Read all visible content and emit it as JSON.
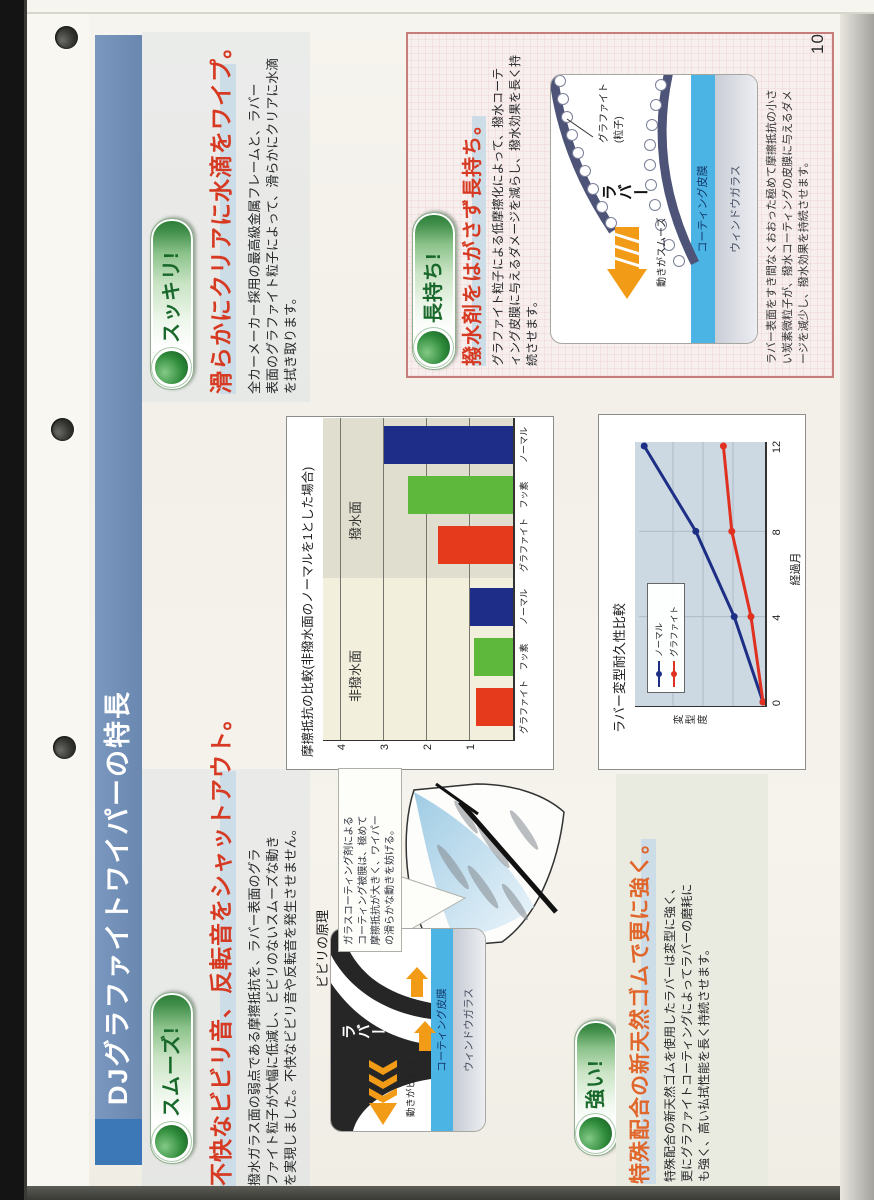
{
  "page": {
    "number": "10",
    "title": "DJグラファイトワイパーの特長"
  },
  "colors": {
    "title_bar": "#7090ba",
    "title_cap": "#3c78b7",
    "headline_red": "#d63a22",
    "headline_orange": "#e0662c",
    "pill_green": "#2b7b36",
    "coating_blue": "#4cb4e4",
    "orange_arrow": "#f29b16",
    "pink_border": "#c87d7d",
    "bar_graphite": "#e63a1c",
    "bar_fluorine": "#5eb83c",
    "bar_normal": "#1e2d87",
    "line_normal": "#1c2f85",
    "line_graphite": "#e03020"
  },
  "sections": {
    "smooth": {
      "badge": "スムーズ!",
      "headline": "不快なビビリ音、反転音をシャットアウト。",
      "body": [
        "撥水ガラス面の弱点である摩擦抵抗を、ラバー表面のグラ",
        "ファイト粒子が大幅に低減し、ビビリのないスムーズな動き",
        "を実現しました。不快なビビリ音や反転音を発生させません。"
      ],
      "diagram_title": "ビビリの原理",
      "callout": [
        "ガラスコーティング剤による",
        "コーティング被膜は、極めて",
        "摩擦抵抗が大きく、ワイパー",
        "の滑らかな動きを妨げる。"
      ],
      "diagram": {
        "rubber": "ラバー",
        "motion": "動きがビビリ",
        "coating": "コーティング皮膜",
        "glass": "ウィンドウガラス"
      }
    },
    "clear": {
      "badge": "スッキリ!",
      "headline": "滑らかにクリアに水滴をワイプ。",
      "body": [
        "全カーメーカー採用の最高級金属フレームと、ラバー",
        "表面のグラファイト粒子によって、滑らかにクリアに水滴",
        "を拭き取ります。"
      ]
    },
    "lasting": {
      "badge": "長持ち!",
      "headline": "撥水剤をはがさず長持ち。",
      "body": [
        "グラファイト粒子による低摩擦化によって、撥水コーテ",
        "ィング皮膜に与えるダメージを減らし、撥水効果を長く持",
        "続させます。"
      ],
      "diagram": {
        "rubber": "ラバー",
        "particle_line1": "グラファイト",
        "particle_line2": "(粒子)",
        "motion": "動きがスムーズ",
        "coating": "コーティング皮膜",
        "glass": "ウィンドウガラス"
      },
      "caption": [
        "ラバー表面をすき間なくおおった極めて摩擦抵抗の小さ",
        "い炭素微粒子が、撥水コーティングの皮膜に与えるダメ",
        "ージを減少し、撥水効果を持続させます。"
      ]
    },
    "strong": {
      "badge": "強い!",
      "headline": "特殊配合の新天然ゴムで更に強く。",
      "body": [
        "特殊配合の新天然ゴムを使用したラバーは変型に強く、",
        "更にグラファイトコーティングによってラバーの磨耗に",
        "も強く、高い払拭性能を長く持続させます。"
      ]
    }
  },
  "chart_data": [
    {
      "type": "bar",
      "title": "摩擦抵抗の比較(非撥水面のノーマルを1とした場合)",
      "group_labels": [
        "非撥水面",
        "撥水面"
      ],
      "categories": [
        "グラファイト",
        "フッ素",
        "ノーマル",
        "グラファイト",
        "フッ素",
        "ノーマル"
      ],
      "values": [
        0.85,
        0.9,
        1.0,
        1.75,
        2.45,
        3.0
      ],
      "colors": [
        "#e63a1c",
        "#5eb83c",
        "#1e2d87"
      ],
      "ylim": [
        0,
        4.4
      ],
      "yticks": [
        1,
        2,
        3,
        4
      ],
      "grid": true,
      "legend_position": "none"
    },
    {
      "type": "line",
      "title": "ラバー変型耐久性比較",
      "xlabel": "経過月",
      "ylabel": "変型度",
      "x": [
        0,
        4,
        8,
        12
      ],
      "xticks": [
        "0",
        "4",
        "8",
        "12"
      ],
      "ylim": [
        0,
        1.08
      ],
      "series": [
        {
          "name": "ノーマル",
          "color": "#1c2f85",
          "values": [
            0,
            0.24,
            0.56,
            0.99
          ]
        },
        {
          "name": "グラファイト",
          "color": "#e03020",
          "values": [
            0,
            0.1,
            0.26,
            0.33
          ]
        }
      ],
      "grid": true,
      "legend_position": "upper-left"
    }
  ]
}
